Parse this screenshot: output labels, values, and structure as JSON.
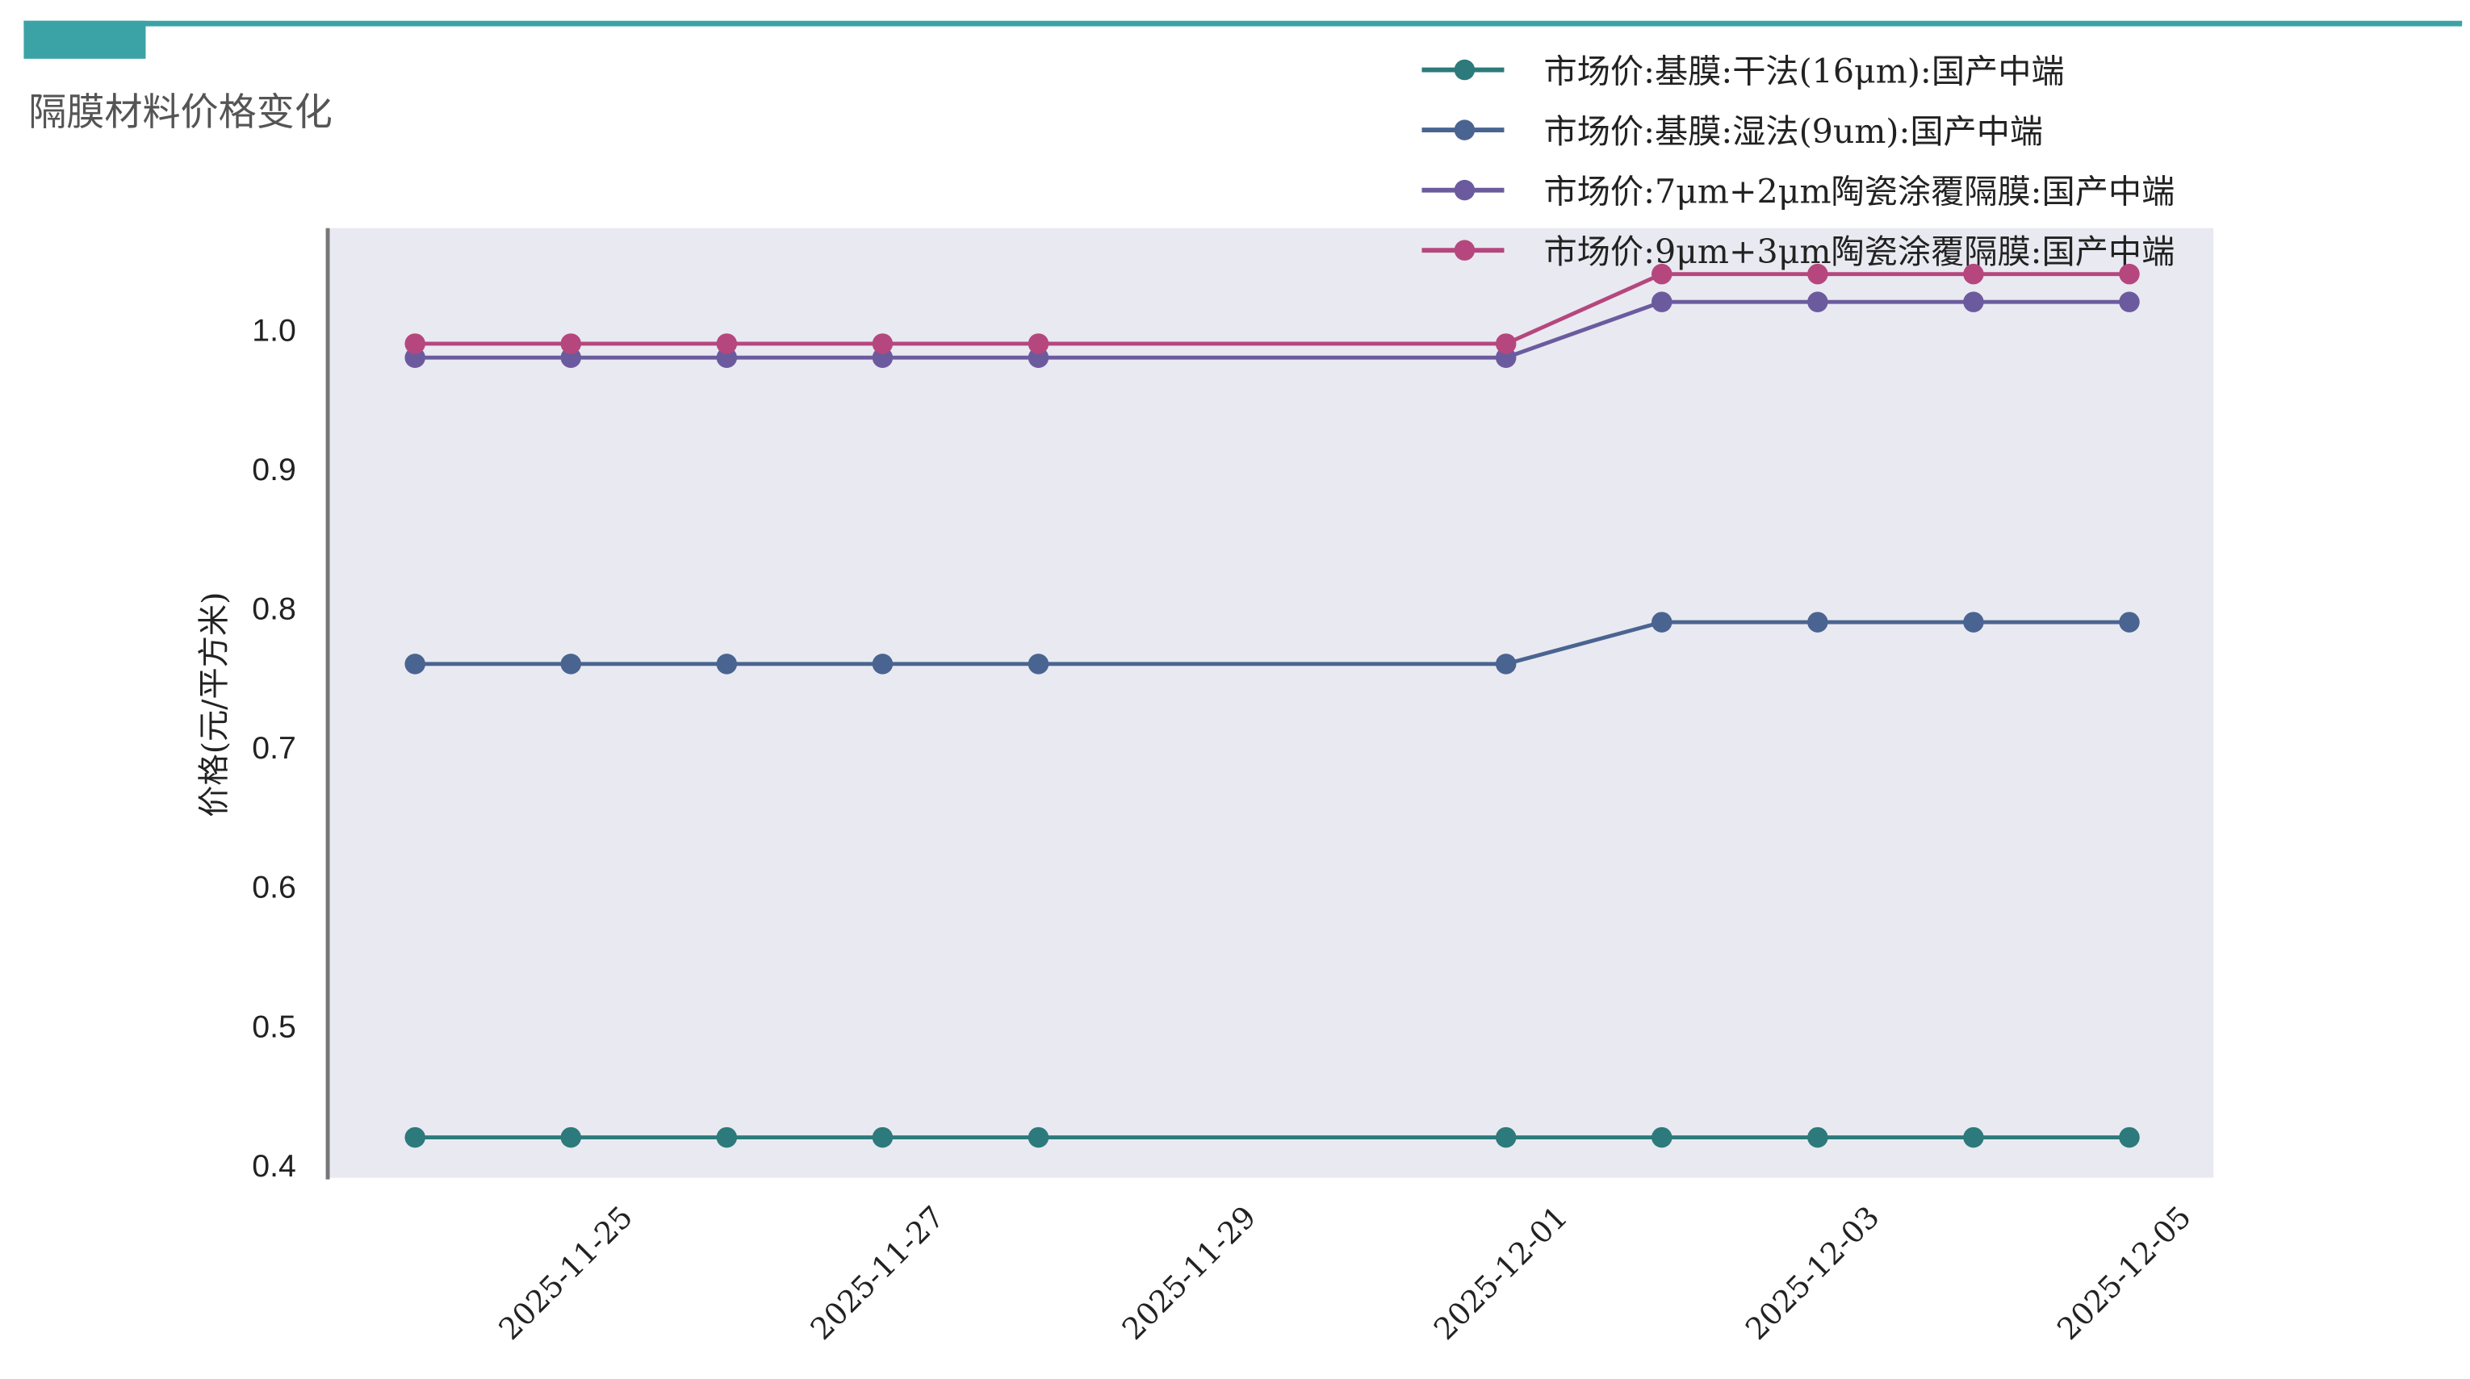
{
  "header": {
    "title": "隔膜材料价格变化",
    "accent_color": "#3ba3a6"
  },
  "chart_data": {
    "type": "line",
    "title": "",
    "xlabel": "",
    "ylabel": "价格(元/平方米)",
    "x": [
      "2025-11-24",
      "2025-11-25",
      "2025-11-26",
      "2025-11-27",
      "2025-11-28",
      "2025-12-01",
      "2025-12-02",
      "2025-12-03",
      "2025-12-04",
      "2025-12-05"
    ],
    "xlim": [
      "2025-11-23.45",
      "2025-12-05.54"
    ],
    "x_ticks": [
      "2025-11-25",
      "2025-11-27",
      "2025-11-29",
      "2025-12-01",
      "2025-12-03",
      "2025-12-05"
    ],
    "ylim": [
      0.391,
      1.073
    ],
    "y_ticks": [
      "0.4",
      "0.5",
      "0.6",
      "0.7",
      "0.8",
      "0.9",
      "1.0"
    ],
    "grid": false,
    "background": "#e9e9f1",
    "legend_position": "top-right",
    "markers": true,
    "series": [
      {
        "name": "市场价:基膜:干法(16μm):国产中端",
        "color": "#2c7a7b",
        "values": [
          0.42,
          0.42,
          0.42,
          0.42,
          0.42,
          0.42,
          0.42,
          0.42,
          0.42,
          0.42
        ]
      },
      {
        "name": "市场价:基膜:湿法(9um):国产中端",
        "color": "#4a6491",
        "values": [
          0.76,
          0.76,
          0.76,
          0.76,
          0.76,
          0.76,
          0.79,
          0.79,
          0.79,
          0.79
        ]
      },
      {
        "name": "市场价:7μm+2μm陶瓷涂覆隔膜:国产中端",
        "color": "#6b5b9e",
        "values": [
          0.98,
          0.98,
          0.98,
          0.98,
          0.98,
          0.98,
          1.02,
          1.02,
          1.02,
          1.02
        ]
      },
      {
        "name": "市场价:9μm+3μm陶瓷涂覆隔膜:国产中端",
        "color": "#b5477e",
        "values": [
          0.99,
          0.99,
          0.99,
          0.99,
          0.99,
          0.99,
          1.04,
          1.04,
          1.04,
          1.04
        ]
      }
    ]
  }
}
